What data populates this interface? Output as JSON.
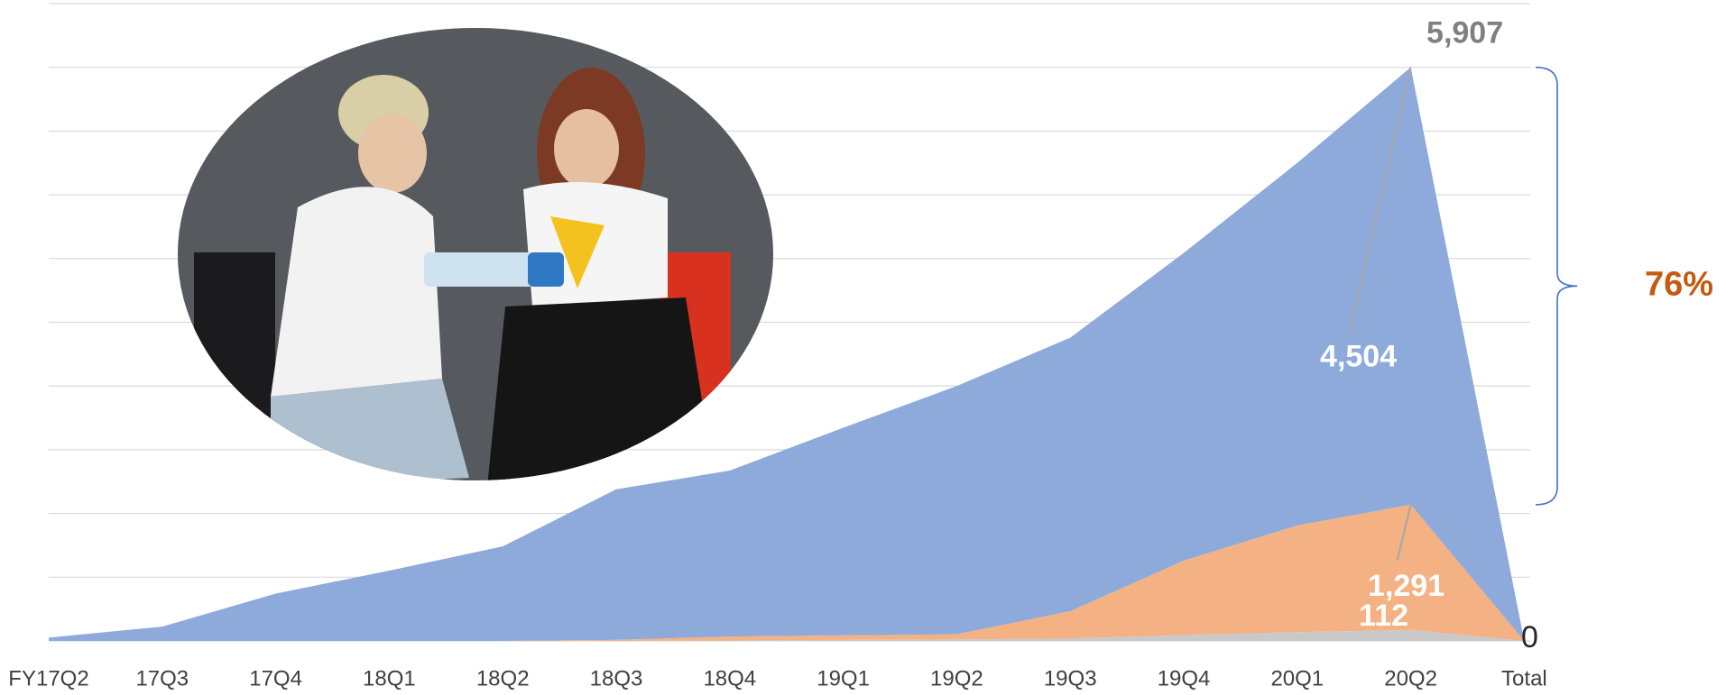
{
  "chart_data": {
    "type": "stacked_area",
    "categories": [
      "FY17Q2",
      "17Q3",
      "17Q4",
      "18Q1",
      "18Q2",
      "18Q3",
      "18Q4",
      "19Q1",
      "19Q2",
      "19Q3",
      "19Q4",
      "20Q1",
      "20Q2",
      "Total"
    ],
    "series": [
      {
        "color": "#c9c9c9",
        "values": [
          0,
          0,
          0,
          0,
          0,
          0,
          5,
          10,
          15,
          25,
          60,
          90,
          112,
          0
        ],
        "value_labels": [
          null,
          null,
          null,
          null,
          null,
          null,
          null,
          null,
          null,
          null,
          null,
          null,
          "112",
          "0"
        ]
      },
      {
        "color": "#f4b183",
        "values": [
          0,
          0,
          0,
          0,
          0,
          11,
          40,
          47,
          53,
          280,
          766,
          1098,
          1291,
          0
        ],
        "value_labels": [
          null,
          null,
          null,
          null,
          null,
          null,
          null,
          null,
          null,
          null,
          null,
          null,
          "1,291",
          null
        ]
      },
      {
        "color": "#8eaadb",
        "values": [
          34,
          147,
          487,
          724,
          973,
          1551,
          1709,
          2138,
          2557,
          2818,
          3169,
          3734,
          4504,
          0
        ],
        "value_labels": [
          null,
          null,
          null,
          null,
          null,
          null,
          null,
          null,
          null,
          null,
          null,
          null,
          "4,504",
          null
        ]
      }
    ],
    "total_label": {
      "value": 5907,
      "label": "5,907"
    },
    "share_annotation": {
      "value": 76,
      "label": "76%"
    },
    "ylim": [
      0,
      6563
    ],
    "yticks": [
      0,
      656,
      1313,
      1969,
      2625,
      3282,
      3938,
      4594,
      5250,
      5907,
      6563
    ],
    "grid": true
  }
}
